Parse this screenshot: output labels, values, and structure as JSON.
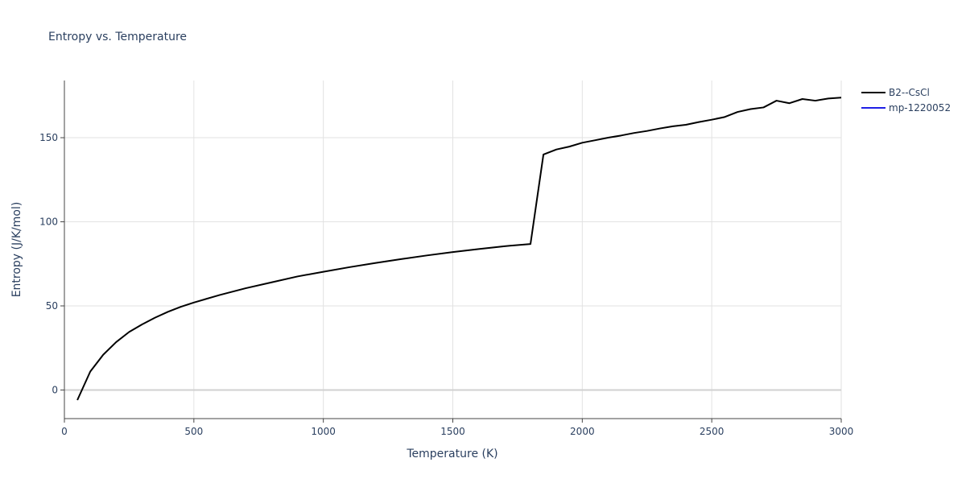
{
  "chart_data": {
    "type": "line",
    "title": "Entropy vs. Temperature",
    "xlabel": "Temperature (K)",
    "ylabel": "Entropy (J/K/mol)",
    "xlim": [
      0,
      3000
    ],
    "ylim": [
      -17,
      184
    ],
    "x_ticks": [
      0,
      500,
      1000,
      1500,
      2000,
      2500,
      3000
    ],
    "y_ticks": [
      0,
      50,
      100,
      150
    ],
    "grid": true,
    "legend_position": "top-right",
    "series": [
      {
        "name": "B2--CsCl",
        "color": "#000000",
        "points": [
          [
            50,
            -6
          ],
          [
            100,
            11
          ],
          [
            150,
            21
          ],
          [
            200,
            28.5
          ],
          [
            250,
            34.5
          ],
          [
            300,
            39
          ],
          [
            350,
            43
          ],
          [
            400,
            46.5
          ],
          [
            450,
            49.5
          ],
          [
            500,
            52
          ],
          [
            600,
            56.5
          ],
          [
            700,
            60.5
          ],
          [
            800,
            64
          ],
          [
            900,
            67.5
          ],
          [
            1000,
            70.3
          ],
          [
            1100,
            73
          ],
          [
            1200,
            75.5
          ],
          [
            1300,
            77.8
          ],
          [
            1400,
            80
          ],
          [
            1500,
            82
          ],
          [
            1600,
            83.8
          ],
          [
            1700,
            85.5
          ],
          [
            1800,
            86.8
          ],
          [
            1850,
            140
          ],
          [
            1900,
            143
          ],
          [
            1950,
            144.7
          ],
          [
            2000,
            147
          ],
          [
            2050,
            148.5
          ],
          [
            2100,
            150
          ],
          [
            2150,
            151.3
          ],
          [
            2200,
            152.8
          ],
          [
            2250,
            154
          ],
          [
            2300,
            155.5
          ],
          [
            2350,
            156.8
          ],
          [
            2400,
            157.7
          ],
          [
            2450,
            159.3
          ],
          [
            2500,
            160.7
          ],
          [
            2550,
            162.3
          ],
          [
            2600,
            165.3
          ],
          [
            2650,
            167
          ],
          [
            2700,
            168
          ],
          [
            2750,
            172
          ],
          [
            2800,
            170.5
          ],
          [
            2850,
            173
          ],
          [
            2900,
            172
          ],
          [
            2950,
            173.3
          ],
          [
            3000,
            173.8
          ]
        ]
      },
      {
        "name": "mp-1220052",
        "color": "#1f1fe6",
        "points": []
      }
    ]
  }
}
